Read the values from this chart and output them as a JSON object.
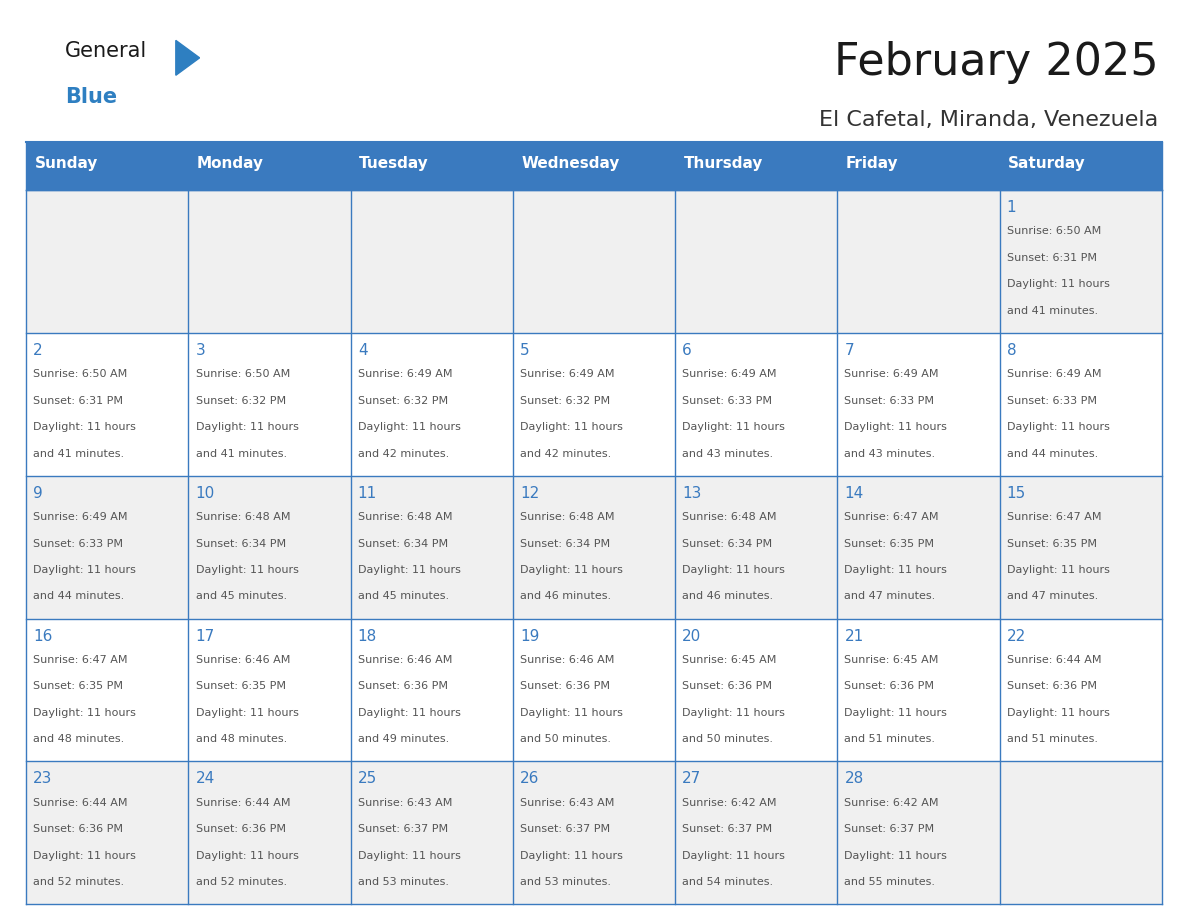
{
  "title": "February 2025",
  "subtitle": "El Cafetal, Miranda, Venezuela",
  "header_color": "#3a7abf",
  "header_text_color": "#ffffff",
  "bg_color": "#ffffff",
  "row_alt_color": "#f0f0f0",
  "cell_border_color": "#3a7abf",
  "day_number_color": "#3a7abf",
  "day_text_color": "#555555",
  "weekdays": [
    "Sunday",
    "Monday",
    "Tuesday",
    "Wednesday",
    "Thursday",
    "Friday",
    "Saturday"
  ],
  "title_color": "#1a1a1a",
  "subtitle_color": "#333333",
  "logo_color1": "#1a1a1a",
  "logo_color2": "#2e7fc1",
  "logo_triangle_color": "#2e7fc1",
  "days": [
    {
      "day": 1,
      "col": 6,
      "row": 0,
      "sunrise": "6:50 AM",
      "sunset": "6:31 PM",
      "daylight_hours": 11,
      "daylight_minutes": 41
    },
    {
      "day": 2,
      "col": 0,
      "row": 1,
      "sunrise": "6:50 AM",
      "sunset": "6:31 PM",
      "daylight_hours": 11,
      "daylight_minutes": 41
    },
    {
      "day": 3,
      "col": 1,
      "row": 1,
      "sunrise": "6:50 AM",
      "sunset": "6:32 PM",
      "daylight_hours": 11,
      "daylight_minutes": 41
    },
    {
      "day": 4,
      "col": 2,
      "row": 1,
      "sunrise": "6:49 AM",
      "sunset": "6:32 PM",
      "daylight_hours": 11,
      "daylight_minutes": 42
    },
    {
      "day": 5,
      "col": 3,
      "row": 1,
      "sunrise": "6:49 AM",
      "sunset": "6:32 PM",
      "daylight_hours": 11,
      "daylight_minutes": 42
    },
    {
      "day": 6,
      "col": 4,
      "row": 1,
      "sunrise": "6:49 AM",
      "sunset": "6:33 PM",
      "daylight_hours": 11,
      "daylight_minutes": 43
    },
    {
      "day": 7,
      "col": 5,
      "row": 1,
      "sunrise": "6:49 AM",
      "sunset": "6:33 PM",
      "daylight_hours": 11,
      "daylight_minutes": 43
    },
    {
      "day": 8,
      "col": 6,
      "row": 1,
      "sunrise": "6:49 AM",
      "sunset": "6:33 PM",
      "daylight_hours": 11,
      "daylight_minutes": 44
    },
    {
      "day": 9,
      "col": 0,
      "row": 2,
      "sunrise": "6:49 AM",
      "sunset": "6:33 PM",
      "daylight_hours": 11,
      "daylight_minutes": 44
    },
    {
      "day": 10,
      "col": 1,
      "row": 2,
      "sunrise": "6:48 AM",
      "sunset": "6:34 PM",
      "daylight_hours": 11,
      "daylight_minutes": 45
    },
    {
      "day": 11,
      "col": 2,
      "row": 2,
      "sunrise": "6:48 AM",
      "sunset": "6:34 PM",
      "daylight_hours": 11,
      "daylight_minutes": 45
    },
    {
      "day": 12,
      "col": 3,
      "row": 2,
      "sunrise": "6:48 AM",
      "sunset": "6:34 PM",
      "daylight_hours": 11,
      "daylight_minutes": 46
    },
    {
      "day": 13,
      "col": 4,
      "row": 2,
      "sunrise": "6:48 AM",
      "sunset": "6:34 PM",
      "daylight_hours": 11,
      "daylight_minutes": 46
    },
    {
      "day": 14,
      "col": 5,
      "row": 2,
      "sunrise": "6:47 AM",
      "sunset": "6:35 PM",
      "daylight_hours": 11,
      "daylight_minutes": 47
    },
    {
      "day": 15,
      "col": 6,
      "row": 2,
      "sunrise": "6:47 AM",
      "sunset": "6:35 PM",
      "daylight_hours": 11,
      "daylight_minutes": 47
    },
    {
      "day": 16,
      "col": 0,
      "row": 3,
      "sunrise": "6:47 AM",
      "sunset": "6:35 PM",
      "daylight_hours": 11,
      "daylight_minutes": 48
    },
    {
      "day": 17,
      "col": 1,
      "row": 3,
      "sunrise": "6:46 AM",
      "sunset": "6:35 PM",
      "daylight_hours": 11,
      "daylight_minutes": 48
    },
    {
      "day": 18,
      "col": 2,
      "row": 3,
      "sunrise": "6:46 AM",
      "sunset": "6:36 PM",
      "daylight_hours": 11,
      "daylight_minutes": 49
    },
    {
      "day": 19,
      "col": 3,
      "row": 3,
      "sunrise": "6:46 AM",
      "sunset": "6:36 PM",
      "daylight_hours": 11,
      "daylight_minutes": 50
    },
    {
      "day": 20,
      "col": 4,
      "row": 3,
      "sunrise": "6:45 AM",
      "sunset": "6:36 PM",
      "daylight_hours": 11,
      "daylight_minutes": 50
    },
    {
      "day": 21,
      "col": 5,
      "row": 3,
      "sunrise": "6:45 AM",
      "sunset": "6:36 PM",
      "daylight_hours": 11,
      "daylight_minutes": 51
    },
    {
      "day": 22,
      "col": 6,
      "row": 3,
      "sunrise": "6:44 AM",
      "sunset": "6:36 PM",
      "daylight_hours": 11,
      "daylight_minutes": 51
    },
    {
      "day": 23,
      "col": 0,
      "row": 4,
      "sunrise": "6:44 AM",
      "sunset": "6:36 PM",
      "daylight_hours": 11,
      "daylight_minutes": 52
    },
    {
      "day": 24,
      "col": 1,
      "row": 4,
      "sunrise": "6:44 AM",
      "sunset": "6:36 PM",
      "daylight_hours": 11,
      "daylight_minutes": 52
    },
    {
      "day": 25,
      "col": 2,
      "row": 4,
      "sunrise": "6:43 AM",
      "sunset": "6:37 PM",
      "daylight_hours": 11,
      "daylight_minutes": 53
    },
    {
      "day": 26,
      "col": 3,
      "row": 4,
      "sunrise": "6:43 AM",
      "sunset": "6:37 PM",
      "daylight_hours": 11,
      "daylight_minutes": 53
    },
    {
      "day": 27,
      "col": 4,
      "row": 4,
      "sunrise": "6:42 AM",
      "sunset": "6:37 PM",
      "daylight_hours": 11,
      "daylight_minutes": 54
    },
    {
      "day": 28,
      "col": 5,
      "row": 4,
      "sunrise": "6:42 AM",
      "sunset": "6:37 PM",
      "daylight_hours": 11,
      "daylight_minutes": 55
    }
  ]
}
